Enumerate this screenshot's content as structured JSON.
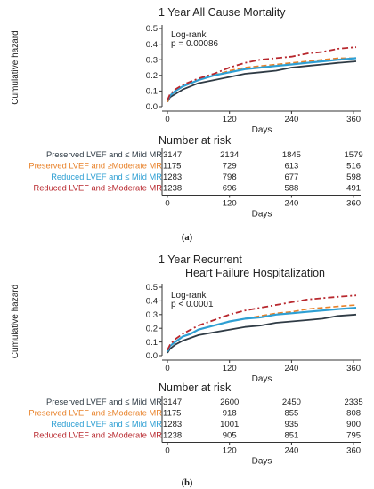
{
  "colors": {
    "preserved_mild": "#2f3b45",
    "preserved_moderate": "#e8822a",
    "reduced_mild": "#2e9fd3",
    "reduced_moderate": "#b8282e"
  },
  "chart_data": [
    {
      "type": "line",
      "panel_label": "(a)",
      "title": "1 Year All Cause Mortality",
      "xlabel": "Days",
      "ylabel": "Cumulative hazard",
      "xlim": [
        0,
        365
      ],
      "ylim": [
        0,
        0.5
      ],
      "xticks": [
        "0",
        "120",
        "240",
        "360"
      ],
      "yticks": [
        "0.0",
        "0.1",
        "0.2",
        "0.3",
        "0.4",
        "0.5"
      ],
      "annotation_line1": "Log-rank",
      "annotation_line2": "p = 0.00086",
      "x": [
        0,
        5,
        15,
        30,
        45,
        60,
        90,
        120,
        150,
        180,
        210,
        240,
        270,
        300,
        330,
        365
      ],
      "series": [
        {
          "name": "Preserved LVEF and ≤ Mild MR",
          "values": [
            0.03,
            0.06,
            0.08,
            0.11,
            0.13,
            0.15,
            0.17,
            0.19,
            0.21,
            0.22,
            0.23,
            0.25,
            0.26,
            0.27,
            0.28,
            0.29
          ]
        },
        {
          "name": "Preserved LVEF and ≥Moderate MR",
          "values": [
            0.03,
            0.07,
            0.1,
            0.13,
            0.15,
            0.17,
            0.2,
            0.23,
            0.25,
            0.26,
            0.27,
            0.28,
            0.29,
            0.3,
            0.31,
            0.31
          ]
        },
        {
          "name": "Reduced LVEF and ≤ Mild MR",
          "values": [
            0.04,
            0.07,
            0.1,
            0.13,
            0.15,
            0.17,
            0.2,
            0.22,
            0.24,
            0.25,
            0.26,
            0.27,
            0.28,
            0.29,
            0.3,
            0.31
          ]
        },
        {
          "name": "Reduced LVEF and ≥Moderate MR",
          "values": [
            0.04,
            0.08,
            0.11,
            0.14,
            0.16,
            0.18,
            0.21,
            0.25,
            0.28,
            0.3,
            0.31,
            0.32,
            0.34,
            0.35,
            0.37,
            0.38
          ]
        }
      ],
      "risk_title": "Number at risk",
      "risk_xticks": [
        "0",
        "120",
        "240",
        "360"
      ],
      "risk_xlabel": "Days",
      "risk_table": [
        [
          "3147",
          "2134",
          "1845",
          "1579"
        ],
        [
          "1175",
          "729",
          "613",
          "516"
        ],
        [
          "1283",
          "798",
          "677",
          "598"
        ],
        [
          "1238",
          "696",
          "588",
          "491"
        ]
      ]
    },
    {
      "type": "line",
      "panel_label": "(b)",
      "title": "1 Year Recurrent",
      "subtitle": "Heart Failure Hospitalization",
      "xlabel": "Days",
      "ylabel": "Cumulative hazard",
      "xlim": [
        0,
        365
      ],
      "ylim": [
        0,
        0.5
      ],
      "xticks": [
        "0",
        "120",
        "240",
        "360"
      ],
      "yticks": [
        "0.0",
        "0.1",
        "0.2",
        "0.3",
        "0.4",
        "0.5"
      ],
      "annotation_line1": "Log-rank",
      "annotation_line2": "p < 0.0001",
      "x": [
        0,
        5,
        15,
        30,
        45,
        60,
        90,
        120,
        150,
        180,
        210,
        240,
        270,
        300,
        330,
        365
      ],
      "series": [
        {
          "name": "Preserved LVEF and ≤ Mild MR",
          "values": [
            0.02,
            0.05,
            0.08,
            0.11,
            0.13,
            0.15,
            0.17,
            0.19,
            0.21,
            0.22,
            0.24,
            0.25,
            0.26,
            0.27,
            0.29,
            0.3
          ]
        },
        {
          "name": "Preserved LVEF and ≥Moderate MR",
          "values": [
            0.03,
            0.07,
            0.1,
            0.14,
            0.16,
            0.19,
            0.22,
            0.25,
            0.27,
            0.29,
            0.31,
            0.32,
            0.34,
            0.35,
            0.36,
            0.37
          ]
        },
        {
          "name": "Reduced LVEF and ≤ Mild MR",
          "values": [
            0.03,
            0.07,
            0.1,
            0.14,
            0.16,
            0.19,
            0.22,
            0.25,
            0.27,
            0.28,
            0.3,
            0.31,
            0.32,
            0.33,
            0.34,
            0.35
          ]
        },
        {
          "name": "Reduced LVEF and ≥Moderate MR",
          "values": [
            0.04,
            0.08,
            0.12,
            0.16,
            0.19,
            0.22,
            0.26,
            0.3,
            0.33,
            0.35,
            0.37,
            0.39,
            0.41,
            0.42,
            0.43,
            0.44
          ]
        }
      ],
      "risk_title": "Number at risk",
      "risk_xticks": [
        "0",
        "120",
        "240",
        "360"
      ],
      "risk_xlabel": "Days",
      "risk_table": [
        [
          "3147",
          "2600",
          "2450",
          "2335"
        ],
        [
          "1175",
          "918",
          "855",
          "808"
        ],
        [
          "1283",
          "1001",
          "935",
          "900"
        ],
        [
          "1238",
          "905",
          "851",
          "795"
        ]
      ]
    }
  ]
}
